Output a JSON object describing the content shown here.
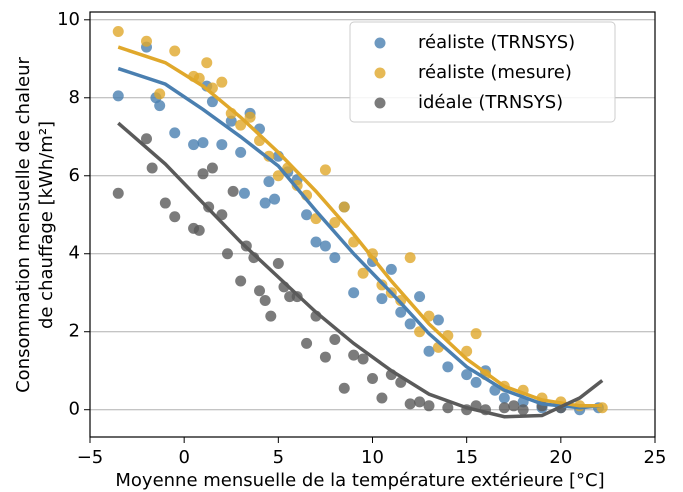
{
  "chart_data": {
    "type": "scatter",
    "xlabel": "Moyenne mensuelle de la température extérieure [°C]",
    "ylabel": [
      "Consommation mensuelle de chaleur",
      "de chauffage [kWh/m²]"
    ],
    "xlim": [
      -5,
      25
    ],
    "ylim": [
      -0.7,
      10.2
    ],
    "xticks": [
      {
        "value": -5,
        "label": "−5"
      },
      0,
      5,
      10,
      15,
      20,
      25
    ],
    "yticks": [
      0,
      2,
      4,
      6,
      8,
      10
    ],
    "grid": true,
    "legend": "upper right",
    "series": [
      {
        "name": "réaliste (TRNSYS)",
        "color": "#4a7fb0",
        "x": [
          -3.5,
          -2,
          -1.5,
          -1.3,
          -0.5,
          0.5,
          1,
          1.2,
          1.5,
          2,
          2.5,
          3,
          3.2,
          3.5,
          4,
          4.3,
          4.5,
          4.8,
          5,
          5.5,
          6,
          6.5,
          7,
          7.5,
          8,
          8.5,
          9,
          10,
          10.5,
          11,
          11.5,
          12,
          12.5,
          13,
          13.5,
          14,
          15,
          15.5,
          16,
          16.5,
          17,
          18,
          19,
          20,
          21,
          22
        ],
        "values": [
          8.05,
          9.3,
          8.0,
          7.8,
          7.1,
          6.8,
          6.85,
          8.3,
          7.9,
          6.8,
          7.4,
          6.6,
          5.55,
          7.6,
          7.2,
          5.3,
          5.85,
          5.4,
          6.5,
          6.1,
          5.9,
          5.0,
          4.3,
          4.2,
          3.9,
          5.2,
          3.0,
          3.8,
          2.85,
          3.6,
          2.5,
          2.2,
          2.9,
          1.5,
          2.3,
          1.1,
          0.9,
          0.7,
          1.0,
          0.5,
          0.3,
          0.2,
          0.05,
          0.05,
          0.0,
          0.05
        ],
        "fit": {
          "x": [
            -3.5,
            -1,
            1,
            3,
            5,
            7,
            9,
            11,
            13,
            15,
            17,
            19,
            21,
            22.2
          ],
          "values": [
            8.75,
            8.35,
            7.7,
            7.0,
            6.25,
            5.1,
            4.0,
            3.0,
            1.95,
            1.1,
            0.5,
            0.15,
            0.05,
            0.1
          ]
        }
      },
      {
        "name": "réaliste (mesure)",
        "color": "#e0a82b",
        "x": [
          -3.5,
          -2,
          -1.3,
          -0.5,
          0.5,
          0.8,
          1.2,
          1.5,
          2,
          2.5,
          3,
          3.5,
          4,
          4.5,
          5,
          5.5,
          6,
          6.5,
          7,
          7.5,
          8,
          8.5,
          9,
          9.5,
          10,
          10.5,
          11,
          11.5,
          12,
          12.5,
          13,
          13.5,
          14,
          15,
          15.5,
          16,
          17,
          18,
          19,
          20,
          21,
          22.2
        ],
        "values": [
          9.7,
          9.45,
          8.1,
          9.2,
          8.55,
          8.5,
          8.9,
          8.25,
          8.4,
          7.6,
          7.3,
          7.5,
          6.9,
          6.5,
          6.0,
          6.2,
          5.75,
          5.5,
          4.9,
          6.15,
          4.8,
          5.2,
          4.3,
          3.5,
          4.0,
          3.2,
          3.0,
          2.8,
          3.9,
          2.0,
          2.4,
          1.6,
          1.9,
          1.5,
          1.95,
          0.9,
          0.6,
          0.5,
          0.3,
          0.2,
          0.1,
          0.05
        ],
        "fit": {
          "x": [
            -3.5,
            -1,
            1,
            3,
            5,
            7,
            9,
            11,
            13,
            15,
            17,
            19,
            21,
            22.2
          ],
          "values": [
            9.3,
            8.9,
            8.3,
            7.5,
            6.6,
            5.6,
            4.5,
            3.3,
            2.2,
            1.3,
            0.6,
            0.25,
            0.1,
            0.1
          ]
        }
      },
      {
        "name": "idéale (TRNSYS)",
        "color": "#5a5a5a",
        "x": [
          -3.5,
          -2,
          -1.7,
          -1,
          -0.5,
          0.5,
          0.8,
          1,
          1.3,
          1.5,
          2,
          2.3,
          2.6,
          3,
          3.3,
          3.7,
          4,
          4.3,
          4.6,
          5,
          5.3,
          5.6,
          6,
          6.5,
          7,
          7.5,
          8,
          8.5,
          9,
          9.5,
          10,
          10.5,
          11,
          11.5,
          12,
          12.5,
          13,
          14,
          15,
          15.5,
          16,
          17,
          17.5,
          18,
          19,
          20
        ],
        "values": [
          5.55,
          6.95,
          6.2,
          5.3,
          4.95,
          4.65,
          4.6,
          6.05,
          5.2,
          6.2,
          5.0,
          4.0,
          5.6,
          3.3,
          4.2,
          3.9,
          3.05,
          2.8,
          2.4,
          3.75,
          3.15,
          2.9,
          2.9,
          1.7,
          2.4,
          1.35,
          1.8,
          0.55,
          1.4,
          1.3,
          0.8,
          0.3,
          0.9,
          0.7,
          0.15,
          0.2,
          0.1,
          0.05,
          0.0,
          0.1,
          0.0,
          0.05,
          0.1,
          0.0,
          0.1,
          0.05
        ],
        "fit": {
          "x": [
            -3.5,
            -1,
            1,
            3,
            5,
            7,
            9,
            11,
            13,
            15,
            17,
            19,
            21,
            22.2
          ],
          "values": [
            7.35,
            6.3,
            5.3,
            4.3,
            3.4,
            2.5,
            1.7,
            1.0,
            0.4,
            0.05,
            -0.18,
            -0.15,
            0.3,
            0.75
          ]
        }
      }
    ]
  }
}
